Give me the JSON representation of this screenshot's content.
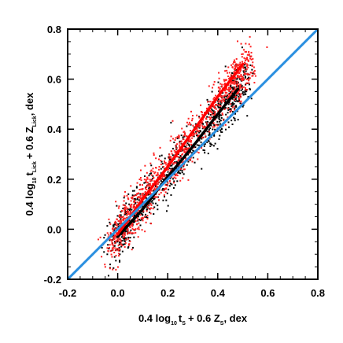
{
  "chart_data": {
    "type": "scatter",
    "title": "",
    "xlabel": {
      "prefix": "0.4 log",
      "sub1": "10",
      "t": "t",
      "sub2": "S",
      "mid": "+ 0.6 Z",
      "sub3": "S",
      "suffix": ", dex"
    },
    "ylabel": {
      "prefix": "0.4 log",
      "sub1": "10",
      "t": "t",
      "sub2": "Lick",
      "mid": "+ 0.6 Z",
      "sub3": "Lick",
      "suffix": ", dex"
    },
    "xlim": [
      -0.2,
      0.8
    ],
    "ylim": [
      -0.2,
      0.8
    ],
    "xticks": [
      "-0.2",
      "0.0",
      "0.2",
      "0.4",
      "0.6",
      "0.8"
    ],
    "yticks": [
      "-0.2",
      "0.0",
      "0.2",
      "0.4",
      "0.6",
      "0.8"
    ],
    "grid": false,
    "series": [
      {
        "kind": "scatter-cloud",
        "color": "#000000",
        "slope": 1.2,
        "x_range": [
          0.0,
          0.48
        ],
        "n_points": 900,
        "spread": 0.05
      },
      {
        "kind": "scatter-cloud",
        "color": "#ff2020",
        "slope": 1.3,
        "x_range": [
          0.0,
          0.5
        ],
        "n_points": 1100,
        "spread": 0.05
      },
      {
        "kind": "line",
        "color": "#000000",
        "x": [
          0.0,
          0.1,
          0.2,
          0.3,
          0.4,
          0.48
        ],
        "y": [
          -0.03,
          0.08,
          0.21,
          0.33,
          0.46,
          0.56
        ]
      },
      {
        "kind": "line",
        "color": "#ff0000",
        "x": [
          0.0,
          0.1,
          0.2,
          0.3,
          0.4,
          0.5
        ],
        "y": [
          -0.02,
          0.12,
          0.25,
          0.39,
          0.53,
          0.66
        ]
      },
      {
        "kind": "line",
        "color": "#2a8fe0",
        "x": [
          -0.2,
          0.8
        ],
        "y": [
          -0.2,
          0.8
        ]
      }
    ]
  }
}
